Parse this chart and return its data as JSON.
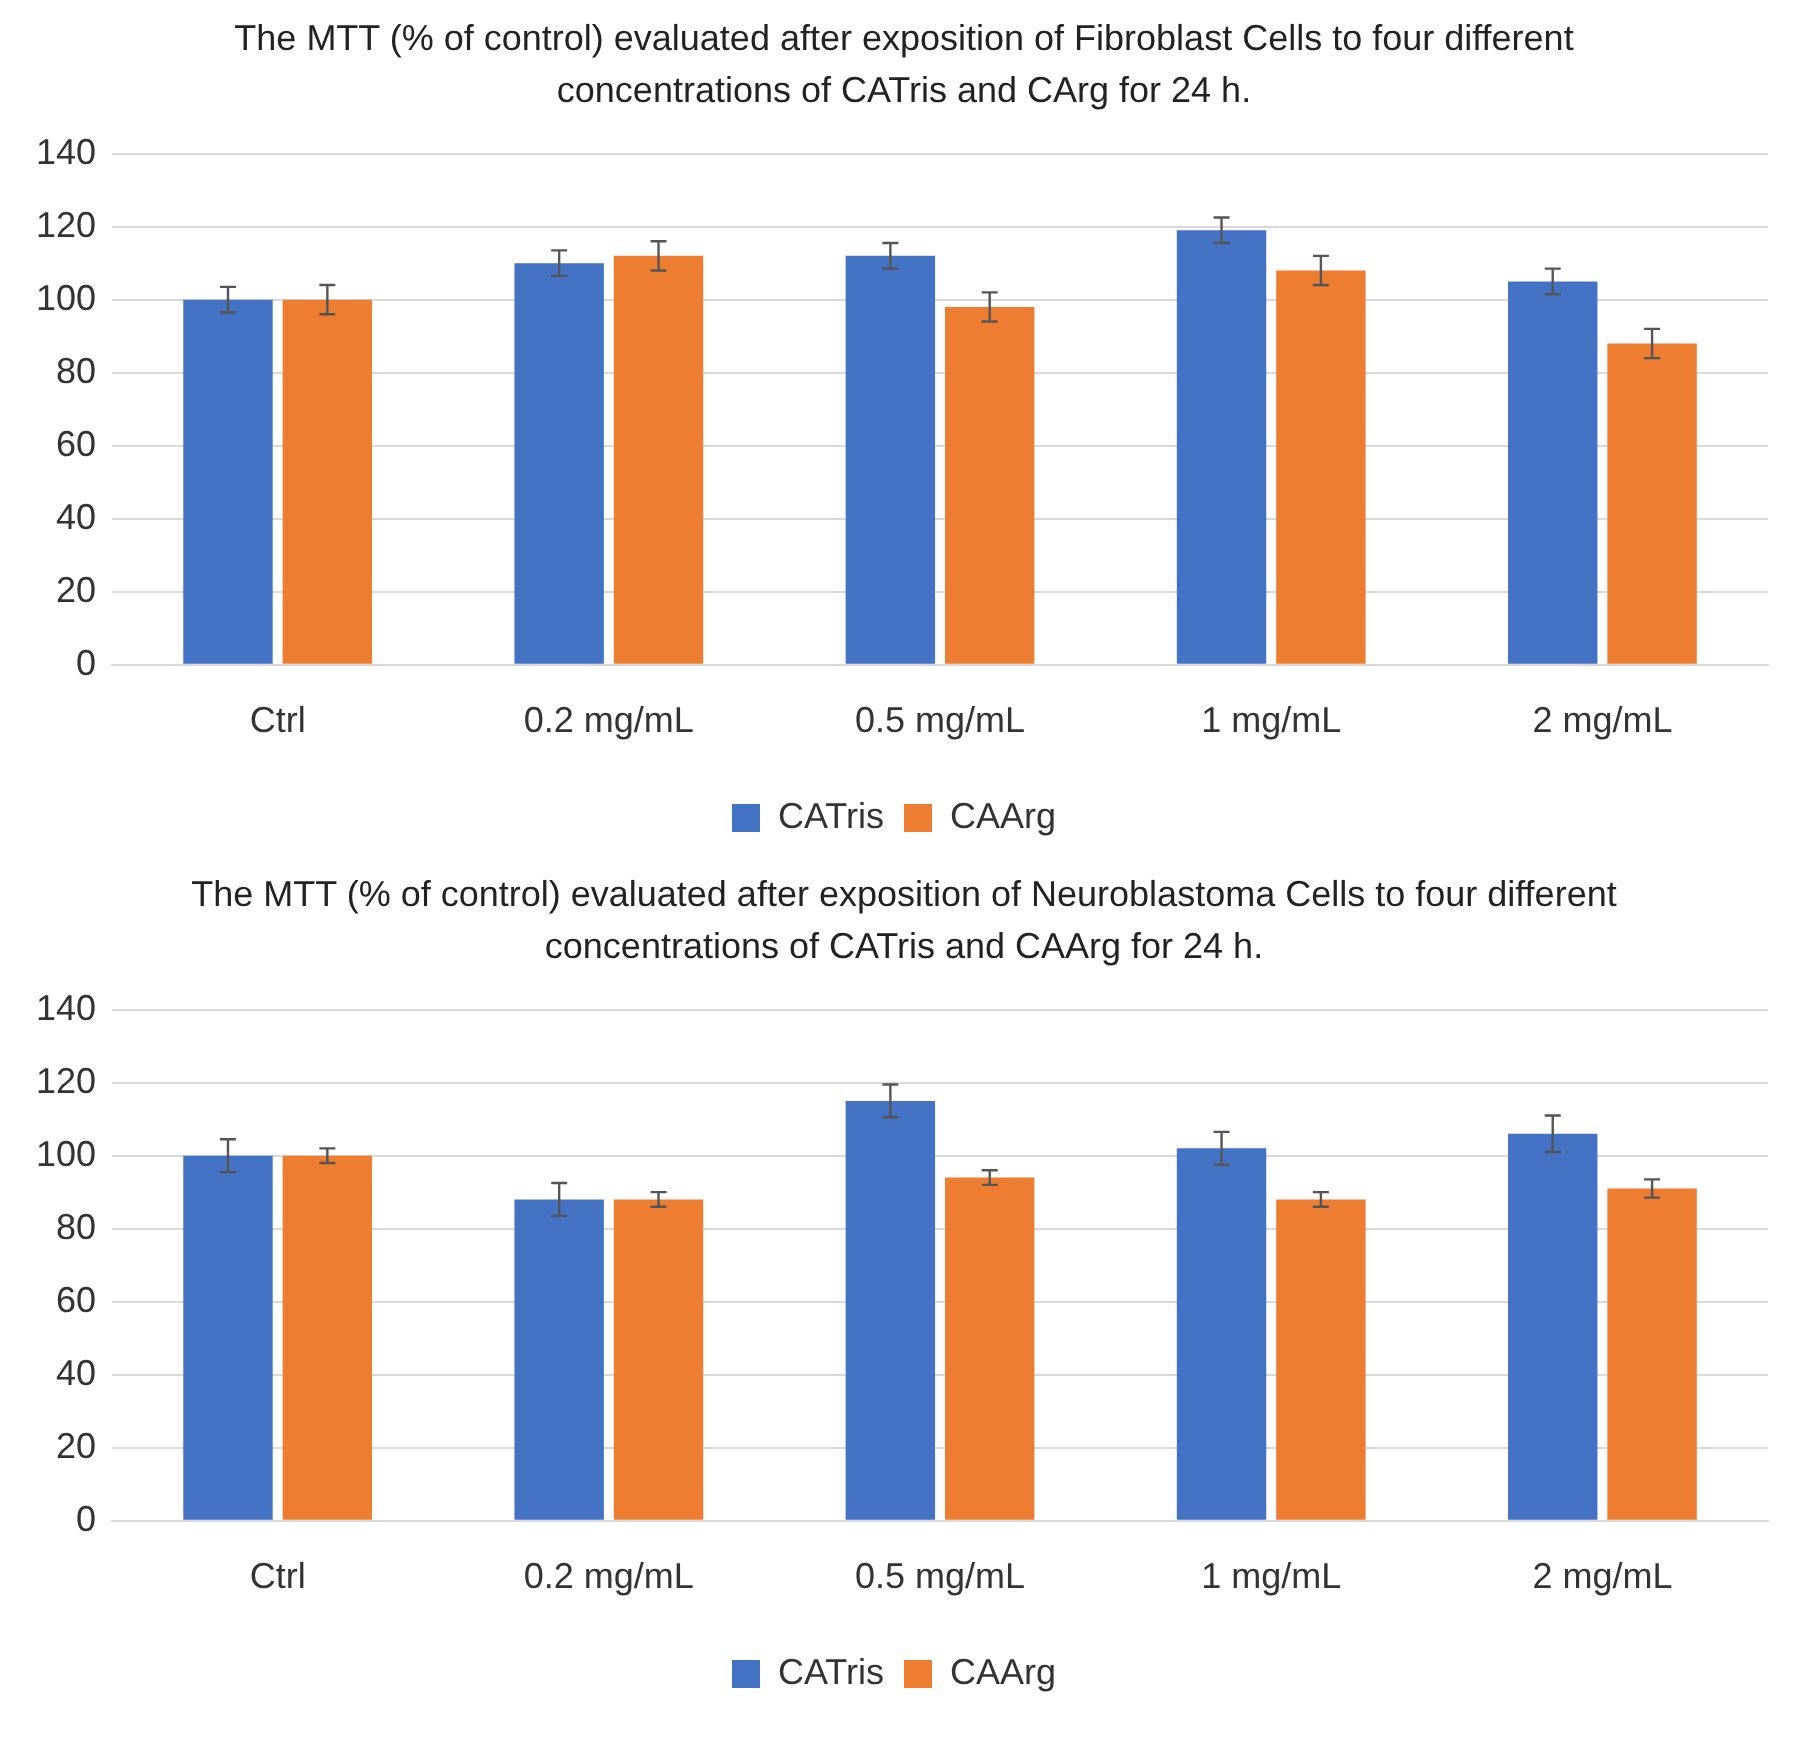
{
  "chart_data": [
    {
      "type": "bar",
      "title": "The MTT (% of control) evaluated after exposition of Fibroblast Cells to four different concentrations of CATris and CArg for 24 h.",
      "categories": [
        "Ctrl",
        "0.2 mg/mL",
        "0.5 mg/mL",
        "1 mg/mL",
        "2 mg/mL"
      ],
      "series": [
        {
          "name": "CATris",
          "color": "#4472c4",
          "values": [
            100,
            110,
            112,
            119,
            105
          ],
          "errors": [
            3.5,
            3.5,
            3.5,
            3.5,
            3.5
          ]
        },
        {
          "name": "CAArg",
          "color": "#ed7d31",
          "values": [
            100,
            112,
            98,
            108,
            88
          ],
          "errors": [
            4,
            4,
            4,
            4,
            4
          ]
        }
      ],
      "ylim": [
        0,
        140
      ],
      "yticks": [
        0,
        20,
        40,
        60,
        80,
        100,
        120,
        140
      ],
      "grid": "y",
      "legend": "bottom"
    },
    {
      "type": "bar",
      "title": "The MTT (% of control) evaluated after exposition of Neuroblastoma Cells to four different concentrations of CATris and CAArg for 24 h.",
      "categories": [
        "Ctrl",
        "0.2 mg/mL",
        "0.5 mg/mL",
        "1 mg/mL",
        "2 mg/mL"
      ],
      "series": [
        {
          "name": "CATris",
          "color": "#4472c4",
          "values": [
            100,
            88,
            115,
            102,
            106
          ],
          "errors": [
            4.5,
            4.5,
            4.5,
            4.5,
            5
          ]
        },
        {
          "name": "CAArg",
          "color": "#ed7d31",
          "values": [
            100,
            88,
            94,
            88,
            91
          ],
          "errors": [
            2,
            2,
            2,
            2,
            2.5
          ]
        }
      ],
      "ylim": [
        0,
        140
      ],
      "yticks": [
        0,
        20,
        40,
        60,
        80,
        100,
        120,
        140
      ],
      "grid": "y",
      "legend": "bottom"
    }
  ]
}
